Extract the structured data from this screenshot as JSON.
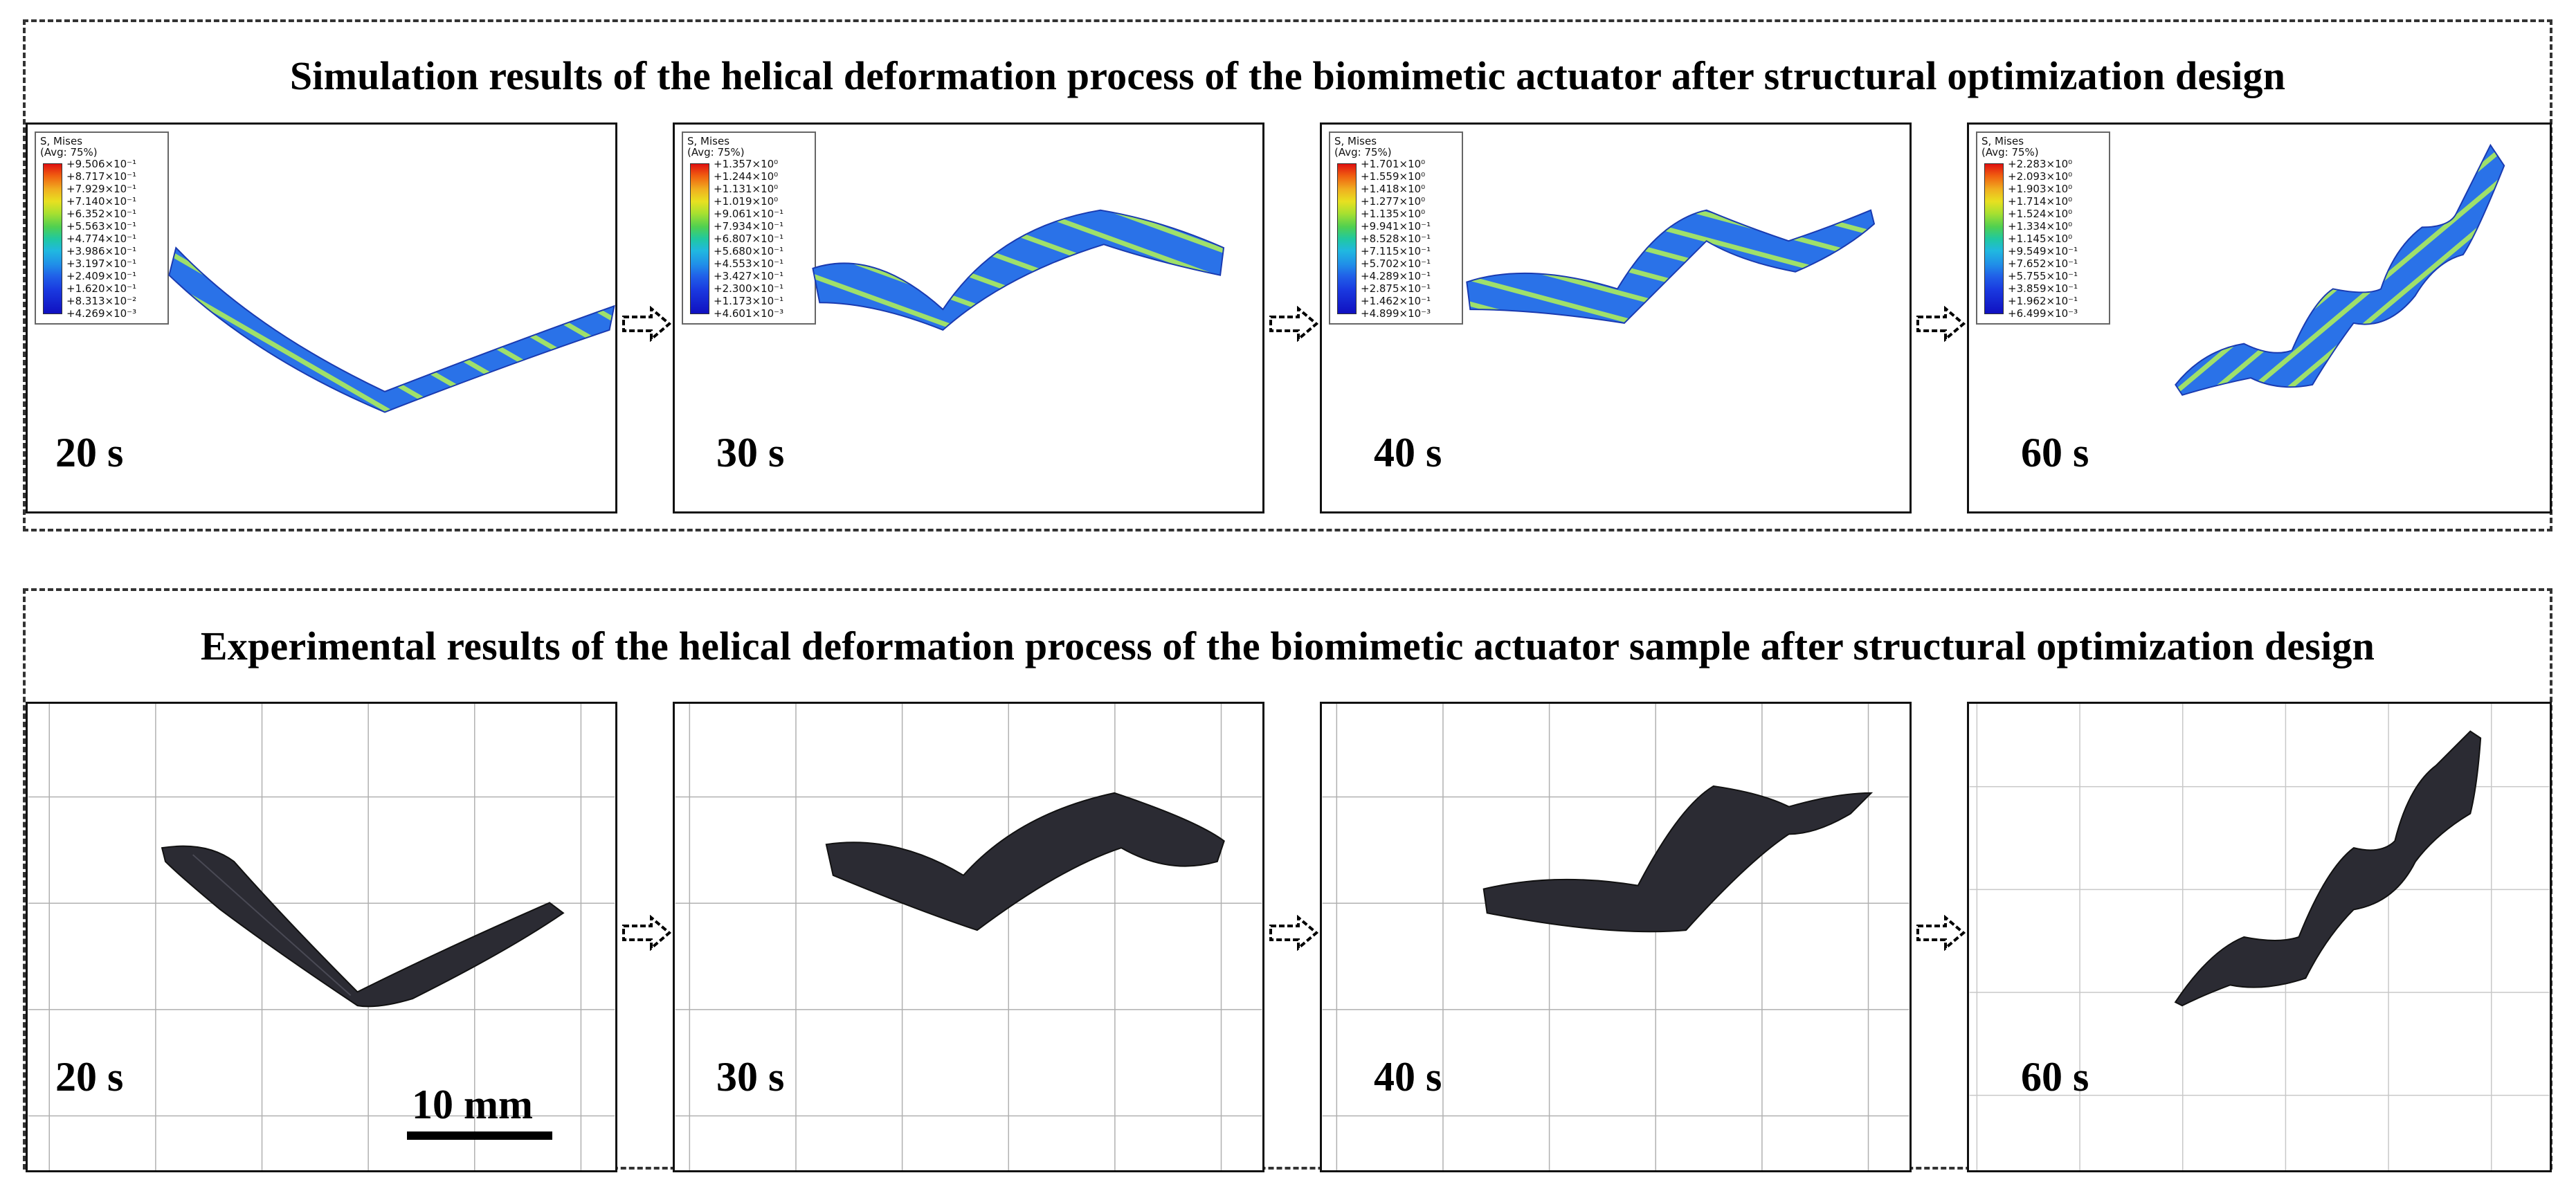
{
  "simulation": {
    "title": "Simulation results of the helical deformation process of the biomimetic actuator after structural optimization design",
    "panels": [
      {
        "time": "20 s",
        "legend": {
          "header_1": "S, Mises",
          "header_2": "(Avg: 75%)",
          "values": [
            "+9.506×10⁻¹",
            "+8.717×10⁻¹",
            "+7.929×10⁻¹",
            "+7.140×10⁻¹",
            "+6.352×10⁻¹",
            "+5.563×10⁻¹",
            "+4.774×10⁻¹",
            "+3.986×10⁻¹",
            "+3.197×10⁻¹",
            "+2.409×10⁻¹",
            "+1.620×10⁻¹",
            "+8.313×10⁻²",
            "+4.269×10⁻³"
          ]
        }
      },
      {
        "time": "30 s",
        "legend": {
          "header_1": "S, Mises",
          "header_2": "(Avg: 75%)",
          "values": [
            "+1.357×10⁰",
            "+1.244×10⁰",
            "+1.131×10⁰",
            "+1.019×10⁰",
            "+9.061×10⁻¹",
            "+7.934×10⁻¹",
            "+6.807×10⁻¹",
            "+5.680×10⁻¹",
            "+4.553×10⁻¹",
            "+3.427×10⁻¹",
            "+2.300×10⁻¹",
            "+1.173×10⁻¹",
            "+4.601×10⁻³"
          ]
        }
      },
      {
        "time": "40 s",
        "legend": {
          "header_1": "S, Mises",
          "header_2": "(Avg: 75%)",
          "values": [
            "+1.701×10⁰",
            "+1.559×10⁰",
            "+1.418×10⁰",
            "+1.277×10⁰",
            "+1.135×10⁰",
            "+9.941×10⁻¹",
            "+8.528×10⁻¹",
            "+7.115×10⁻¹",
            "+5.702×10⁻¹",
            "+4.289×10⁻¹",
            "+2.875×10⁻¹",
            "+1.462×10⁻¹",
            "+4.899×10⁻³"
          ]
        }
      },
      {
        "time": "60 s",
        "legend": {
          "header_1": "S, Mises",
          "header_2": "(Avg: 75%)",
          "values": [
            "+2.283×10⁰",
            "+2.093×10⁰",
            "+1.903×10⁰",
            "+1.714×10⁰",
            "+1.524×10⁰",
            "+1.334×10⁰",
            "+1.145×10⁰",
            "+9.549×10⁻¹",
            "+7.652×10⁻¹",
            "+5.755×10⁻¹",
            "+3.859×10⁻¹",
            "+1.962×10⁻¹",
            "+6.499×10⁻³"
          ]
        }
      }
    ]
  },
  "experiment": {
    "title": "Experimental results of the helical deformation process of the biomimetic actuator sample after structural optimization design",
    "panels": [
      {
        "time": "20 s"
      },
      {
        "time": "30 s"
      },
      {
        "time": "40 s"
      },
      {
        "time": "60 s"
      }
    ],
    "scale_bar_label": "10 mm"
  },
  "colors": {
    "sim_blue": "#2a72e8",
    "sim_stripe": "#9fe06a",
    "sample_dark": "#2b2b33",
    "grid_line": "#b0b0b0"
  }
}
